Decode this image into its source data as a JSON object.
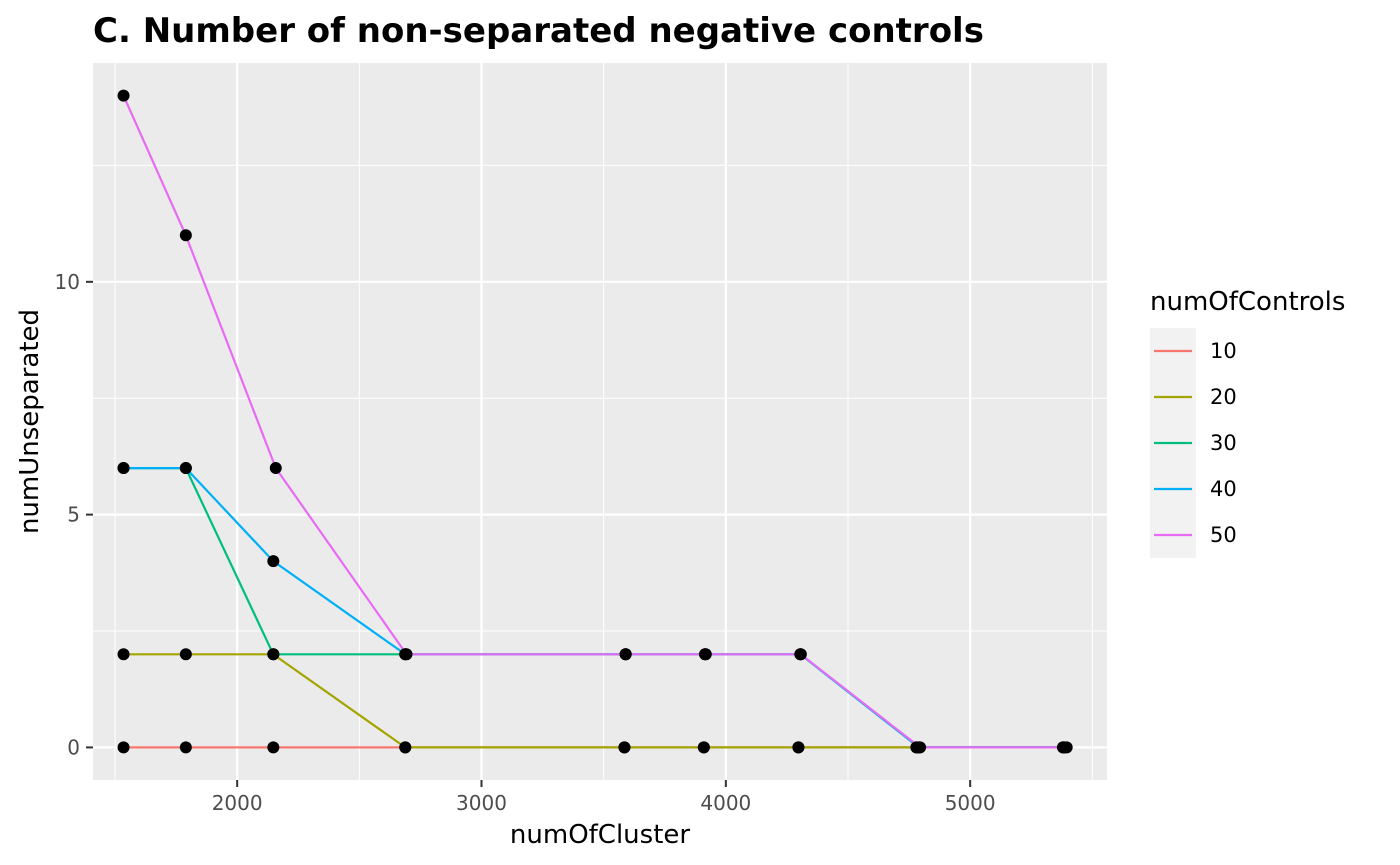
{
  "chart_data": {
    "type": "line",
    "title": "C. Number of non-separated negative controls",
    "xlabel": "numOfCluster",
    "ylabel": "numUnseparated",
    "xlim": [
      1410,
      5560
    ],
    "ylim": [
      -0.7,
      14.7
    ],
    "x_ticks": [
      2000,
      3000,
      4000,
      5000
    ],
    "x_tick_labels": [
      "2000",
      "3000",
      "4000",
      "5000"
    ],
    "x_minor_ticks": [
      1500,
      2500,
      3500,
      4500,
      5500
    ],
    "y_ticks": [
      0,
      5,
      10
    ],
    "y_tick_labels": [
      "0",
      "5",
      "10"
    ],
    "y_minor_ticks": [
      2.5,
      7.5,
      12.5
    ],
    "grid": true,
    "legend": {
      "title": "numOfControls",
      "position": "right"
    },
    "series": [
      {
        "name": "10",
        "color": "#F8766D",
        "x": [
          1535,
          1790,
          2148,
          2688,
          3585,
          3910,
          4297,
          4780,
          5380
        ],
        "y": [
          0,
          0,
          0,
          0,
          0,
          0,
          0,
          0,
          0
        ]
      },
      {
        "name": "20",
        "color": "#A3A500",
        "x": [
          1535,
          1790,
          2148,
          2688,
          3585,
          3910,
          4297,
          4780,
          5380
        ],
        "y": [
          2,
          2,
          2,
          0,
          0,
          0,
          0,
          0,
          0
        ]
      },
      {
        "name": "30",
        "color": "#00BF7D",
        "x": [
          1535,
          1790,
          2148,
          2688,
          3590,
          3915,
          4305,
          4790,
          5385
        ],
        "y": [
          6,
          6,
          2,
          2,
          2,
          2,
          2,
          0,
          0
        ]
      },
      {
        "name": "40",
        "color": "#00B0F6",
        "x": [
          1535,
          1790,
          2148,
          2688,
          3590,
          3915,
          4305,
          4790,
          5385
        ],
        "y": [
          6,
          6,
          4,
          2,
          2,
          2,
          2,
          0,
          0
        ]
      },
      {
        "name": "50",
        "color": "#E76BF3",
        "x": [
          1535,
          1790,
          2158,
          2693,
          3590,
          3918,
          4307,
          4795,
          5395
        ],
        "y": [
          14,
          11,
          6,
          2,
          2,
          2,
          2,
          0,
          0
        ]
      }
    ]
  }
}
